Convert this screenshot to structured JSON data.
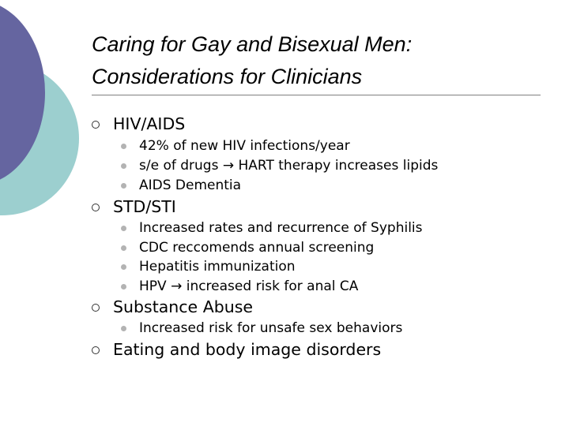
{
  "colors": {
    "accent_purple": "#6565a0",
    "accent_teal": "#9ccfcf",
    "bullet_gray": "#b3b3b3"
  },
  "icons": {
    "section_bullet": "hollow-circle-icon",
    "item_bullet": "filled-circle-icon",
    "arrow": "right-arrow"
  },
  "slide": {
    "title_line1": "Caring for Gay and Bisexual Men:",
    "title_line2": "Considerations for Clinicians",
    "sections": [
      {
        "heading": "HIV/AIDS",
        "items": [
          "42% of new HIV infections/year",
          "s/e of drugs → HART therapy increases lipids",
          "AIDS Dementia"
        ]
      },
      {
        "heading": "STD/STI",
        "items": [
          "Increased rates and recurrence of Syphilis",
          "CDC reccomends annual screening",
          "Hepatitis immunization",
          "HPV → increased risk for anal CA"
        ]
      },
      {
        "heading": "Substance Abuse",
        "items": [
          "Increased risk for unsafe sex behaviors"
        ]
      },
      {
        "heading": "Eating and body image disorders",
        "items": []
      }
    ]
  }
}
